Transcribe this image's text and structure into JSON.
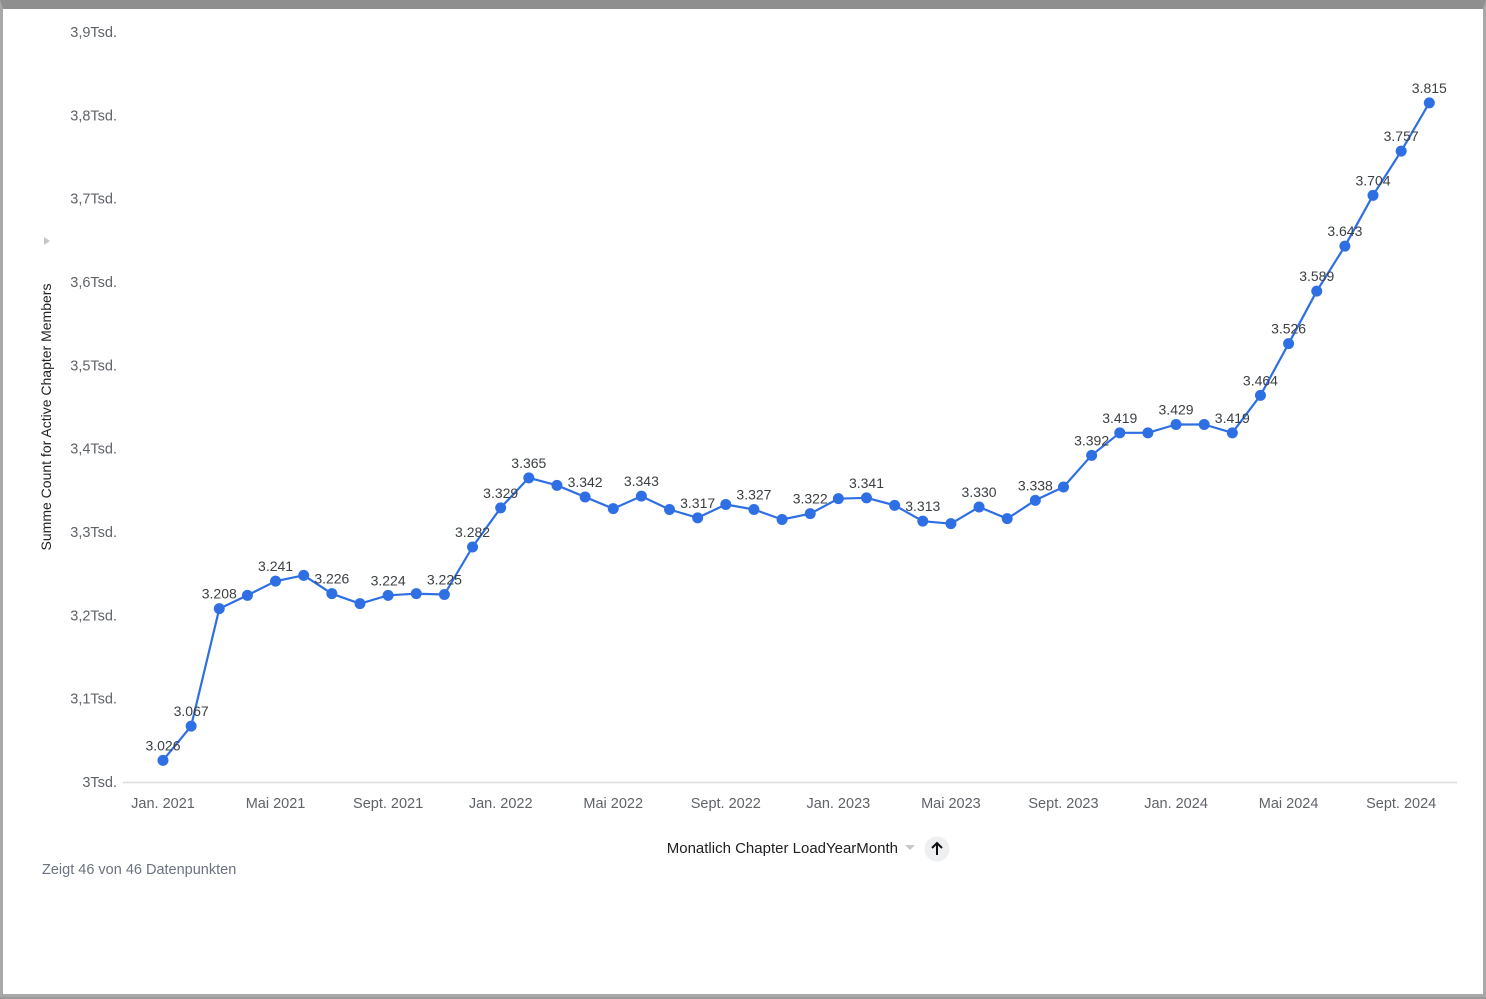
{
  "chart_data": {
    "type": "line",
    "xlabel": "Monatlich Chapter LoadYearMonth",
    "ylabel": "Summe Count for Active Chapter Members",
    "ylim": [
      3000,
      3900
    ],
    "y_ticks": [
      {
        "value": 3000,
        "label": "3Tsd."
      },
      {
        "value": 3100,
        "label": "3,1Tsd."
      },
      {
        "value": 3200,
        "label": "3,2Tsd."
      },
      {
        "value": 3300,
        "label": "3,3Tsd."
      },
      {
        "value": 3400,
        "label": "3,4Tsd."
      },
      {
        "value": 3500,
        "label": "3,5Tsd."
      },
      {
        "value": 3600,
        "label": "3,6Tsd."
      },
      {
        "value": 3700,
        "label": "3,7Tsd."
      },
      {
        "value": 3800,
        "label": "3,8Tsd."
      },
      {
        "value": 3900,
        "label": "3,9Tsd."
      }
    ],
    "x_ticks": [
      {
        "x": "2021-01",
        "label": "Jan. 2021"
      },
      {
        "x": "2021-05",
        "label": "Mai 2021"
      },
      {
        "x": "2021-09",
        "label": "Sept. 2021"
      },
      {
        "x": "2022-01",
        "label": "Jan. 2022"
      },
      {
        "x": "2022-05",
        "label": "Mai 2022"
      },
      {
        "x": "2022-09",
        "label": "Sept. 2022"
      },
      {
        "x": "2023-01",
        "label": "Jan. 2023"
      },
      {
        "x": "2023-05",
        "label": "Mai 2023"
      },
      {
        "x": "2023-09",
        "label": "Sept. 2023"
      },
      {
        "x": "2024-01",
        "label": "Jan. 2024"
      },
      {
        "x": "2024-05",
        "label": "Mai 2024"
      },
      {
        "x": "2024-09",
        "label": "Sept. 2024"
      }
    ],
    "series": [
      {
        "color": "#2f6fe4",
        "points": [
          {
            "x": "2021-01",
            "y": 3026,
            "label": "3.026"
          },
          {
            "x": "2021-02",
            "y": 3067,
            "label": "3.067"
          },
          {
            "x": "2021-03",
            "y": 3208,
            "label": "3.208"
          },
          {
            "x": "2021-04",
            "y": 3224,
            "label": ""
          },
          {
            "x": "2021-05",
            "y": 3241,
            "label": "3.241"
          },
          {
            "x": "2021-06",
            "y": 3248,
            "label": ""
          },
          {
            "x": "2021-07",
            "y": 3226,
            "label": "3.226"
          },
          {
            "x": "2021-08",
            "y": 3214,
            "label": ""
          },
          {
            "x": "2021-09",
            "y": 3224,
            "label": "3.224"
          },
          {
            "x": "2021-10",
            "y": 3226,
            "label": ""
          },
          {
            "x": "2021-11",
            "y": 3225,
            "label": "3.225"
          },
          {
            "x": "2021-12",
            "y": 3282,
            "label": "3.282"
          },
          {
            "x": "2022-01",
            "y": 3329,
            "label": "3.329"
          },
          {
            "x": "2022-02",
            "y": 3365,
            "label": "3.365"
          },
          {
            "x": "2022-03",
            "y": 3356,
            "label": ""
          },
          {
            "x": "2022-04",
            "y": 3342,
            "label": "3.342"
          },
          {
            "x": "2022-05",
            "y": 3328,
            "label": ""
          },
          {
            "x": "2022-06",
            "y": 3343,
            "label": "3.343"
          },
          {
            "x": "2022-07",
            "y": 3327,
            "label": ""
          },
          {
            "x": "2022-08",
            "y": 3317,
            "label": "3.317"
          },
          {
            "x": "2022-09",
            "y": 3333,
            "label": ""
          },
          {
            "x": "2022-10",
            "y": 3327,
            "label": "3.327"
          },
          {
            "x": "2022-11",
            "y": 3315,
            "label": ""
          },
          {
            "x": "2022-12",
            "y": 3322,
            "label": "3.322"
          },
          {
            "x": "2023-01",
            "y": 3340,
            "label": ""
          },
          {
            "x": "2023-02",
            "y": 3341,
            "label": "3.341"
          },
          {
            "x": "2023-03",
            "y": 3332,
            "label": ""
          },
          {
            "x": "2023-04",
            "y": 3313,
            "label": "3.313"
          },
          {
            "x": "2023-05",
            "y": 3310,
            "label": ""
          },
          {
            "x": "2023-06",
            "y": 3330,
            "label": "3.330"
          },
          {
            "x": "2023-07",
            "y": 3316,
            "label": ""
          },
          {
            "x": "2023-08",
            "y": 3338,
            "label": "3.338"
          },
          {
            "x": "2023-09",
            "y": 3354,
            "label": ""
          },
          {
            "x": "2023-10",
            "y": 3392,
            "label": "3.392"
          },
          {
            "x": "2023-11",
            "y": 3419,
            "label": "3.419"
          },
          {
            "x": "2023-12",
            "y": 3419,
            "label": ""
          },
          {
            "x": "2024-01",
            "y": 3429,
            "label": "3.429"
          },
          {
            "x": "2024-02",
            "y": 3429,
            "label": ""
          },
          {
            "x": "2024-03",
            "y": 3419,
            "label": "3.419"
          },
          {
            "x": "2024-04",
            "y": 3464,
            "label": "3.464"
          },
          {
            "x": "2024-05",
            "y": 3526,
            "label": "3.526"
          },
          {
            "x": "2024-06",
            "y": 3589,
            "label": "3.589"
          },
          {
            "x": "2024-07",
            "y": 3643,
            "label": "3.643"
          },
          {
            "x": "2024-08",
            "y": 3704,
            "label": "3.704"
          },
          {
            "x": "2024-09",
            "y": 3757,
            "label": "3.757"
          },
          {
            "x": "2024-10",
            "y": 3815,
            "label": "3.815"
          }
        ]
      }
    ]
  },
  "footer": {
    "note": "Zeigt 46 von 46 Datenpunkten"
  },
  "controls": {
    "sort_icon": "arrow-up-icon",
    "dropdown_icon": "caret-down-icon",
    "axis_expand_icon": "caret-right-icon"
  },
  "colors": {
    "line": "#2f6fe4",
    "axis_line": "#dadce0"
  }
}
